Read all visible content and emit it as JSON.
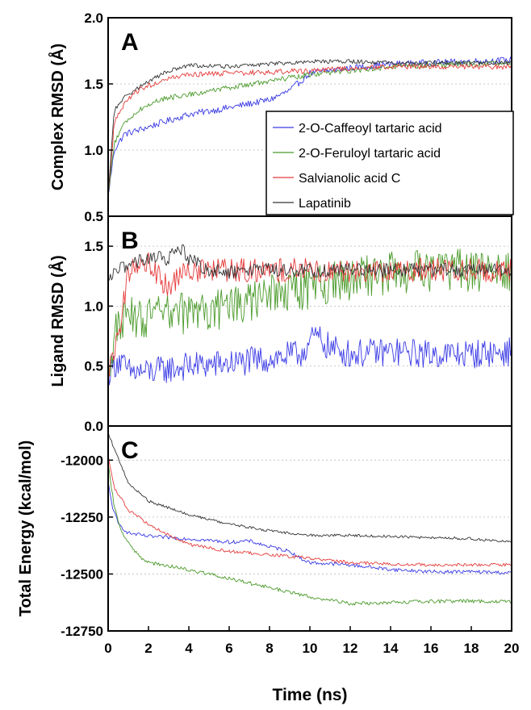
{
  "chart_data": [
    {
      "type": "line",
      "panel_label": "A",
      "ylabel": "Complex RMSD (Å)",
      "xlim": [
        0,
        20
      ],
      "ylim": [
        0.5,
        2.0
      ],
      "yticks": [
        "0.5",
        "1.0",
        "1.5",
        "2.0"
      ],
      "grid": "horizontal dotted",
      "legend_position": "right",
      "legend": [
        "2-O-Caffeoyl tartaric acid",
        "2-O-Feruloyl tartaric acid",
        "Salvianolic acid C",
        "Lapatinib"
      ],
      "series": [
        {
          "name": "2-O-Caffeoyl tartaric acid",
          "color": "#3a3ae6",
          "noise": 0.025,
          "x": [
            0,
            0.3,
            0.8,
            1.5,
            2.5,
            4,
            6,
            8,
            9,
            10,
            11,
            12,
            14,
            16,
            18,
            20
          ],
          "y": [
            0.65,
            1.0,
            1.12,
            1.15,
            1.2,
            1.27,
            1.32,
            1.38,
            1.45,
            1.58,
            1.6,
            1.62,
            1.65,
            1.66,
            1.67,
            1.68
          ]
        },
        {
          "name": "2-O-Feruloyl tartaric acid",
          "color": "#4a9a2a",
          "noise": 0.02,
          "x": [
            0,
            0.3,
            0.8,
            1.5,
            2.5,
            4,
            6,
            8,
            10,
            12,
            14,
            16,
            18,
            20
          ],
          "y": [
            0.65,
            1.05,
            1.2,
            1.3,
            1.38,
            1.42,
            1.47,
            1.52,
            1.57,
            1.6,
            1.63,
            1.64,
            1.65,
            1.66
          ]
        },
        {
          "name": "Salvianolic acid C",
          "color": "#e63a3a",
          "noise": 0.02,
          "x": [
            0,
            0.3,
            0.8,
            1.5,
            2.5,
            4,
            6,
            8,
            10,
            12,
            14,
            16,
            18,
            20
          ],
          "y": [
            0.65,
            1.2,
            1.35,
            1.45,
            1.52,
            1.57,
            1.58,
            1.59,
            1.6,
            1.62,
            1.63,
            1.63,
            1.63,
            1.63
          ]
        },
        {
          "name": "Lapatinib",
          "color": "#333333",
          "noise": 0.015,
          "x": [
            0,
            0.3,
            0.8,
            1.5,
            2,
            3,
            4,
            6,
            8,
            10,
            12,
            14,
            16,
            18,
            20
          ],
          "y": [
            0.65,
            1.3,
            1.4,
            1.47,
            1.52,
            1.6,
            1.64,
            1.63,
            1.65,
            1.67,
            1.67,
            1.66,
            1.66,
            1.66,
            1.66
          ]
        }
      ]
    },
    {
      "type": "line",
      "panel_label": "B",
      "ylabel": "Ligand RMSD (Å)",
      "xlim": [
        0,
        20
      ],
      "ylim": [
        0.0,
        1.75
      ],
      "yticks": [
        "0.0",
        "0.5",
        "1.0",
        "1.5"
      ],
      "grid": "horizontal dotted",
      "series": [
        {
          "name": "2-O-Caffeoyl tartaric acid",
          "color": "#3a3ae6",
          "noise": 0.12,
          "x": [
            0,
            0.5,
            1,
            2,
            4,
            6,
            8,
            9.5,
            10.3,
            11,
            12,
            14,
            16,
            18,
            20
          ],
          "y": [
            0.45,
            0.55,
            0.45,
            0.45,
            0.5,
            0.52,
            0.56,
            0.6,
            0.75,
            0.65,
            0.6,
            0.62,
            0.6,
            0.6,
            0.62
          ]
        },
        {
          "name": "2-O-Feruloyl tartaric acid",
          "color": "#4a9a2a",
          "noise": 0.18,
          "x": [
            0,
            0.5,
            1,
            2,
            4,
            6,
            8,
            10,
            12,
            14,
            16,
            18,
            20
          ],
          "y": [
            0.5,
            0.85,
            0.9,
            0.9,
            0.95,
            0.98,
            1.08,
            1.15,
            1.22,
            1.28,
            1.3,
            1.3,
            1.3
          ]
        },
        {
          "name": "Salvianolic acid C",
          "color": "#e63a3a",
          "noise": 0.1,
          "x": [
            0,
            0.5,
            1,
            2,
            3,
            4,
            5,
            6,
            8,
            10,
            12,
            14,
            16,
            18,
            20
          ],
          "y": [
            0.4,
            0.75,
            1.3,
            1.35,
            1.15,
            1.3,
            1.3,
            1.3,
            1.3,
            1.3,
            1.3,
            1.3,
            1.3,
            1.3,
            1.3
          ]
        },
        {
          "name": "Lapatinib",
          "color": "#333333",
          "noise": 0.06,
          "x": [
            0,
            0.5,
            1,
            2,
            3,
            3.5,
            4,
            5,
            6,
            8,
            10,
            12,
            14,
            16,
            18,
            20
          ],
          "y": [
            1.2,
            1.3,
            1.35,
            1.4,
            1.4,
            1.5,
            1.4,
            1.3,
            1.28,
            1.3,
            1.3,
            1.3,
            1.3,
            1.3,
            1.3,
            1.3
          ]
        }
      ]
    },
    {
      "type": "line",
      "panel_label": "C",
      "ylabel": "Total Energy (kcal/mol)",
      "xlabel": "Time (ns)",
      "xlim": [
        0,
        20
      ],
      "ylim": [
        -12750,
        -11850
      ],
      "yticks": [
        "-12000",
        "-12250",
        "-12500",
        "-12750"
      ],
      "xticks": [
        "0",
        "2",
        "4",
        "6",
        "8",
        "10",
        "12",
        "14",
        "16",
        "18",
        "20"
      ],
      "grid": "horizontal dotted",
      "series": [
        {
          "name": "2-O-Caffeoyl tartaric acid",
          "color": "#3a3ae6",
          "noise": 8,
          "x": [
            0,
            0.2,
            0.5,
            1,
            2,
            4,
            6,
            7,
            8,
            9,
            9.5,
            10,
            12,
            14,
            16,
            18,
            20
          ],
          "y": [
            -12100,
            -12200,
            -12280,
            -12320,
            -12335,
            -12345,
            -12360,
            -12355,
            -12380,
            -12400,
            -12430,
            -12450,
            -12460,
            -12480,
            -12490,
            -12490,
            -12495
          ]
        },
        {
          "name": "2-O-Feruloyl tartaric acid",
          "color": "#4a9a2a",
          "noise": 8,
          "x": [
            0,
            0.3,
            0.6,
            1,
            1.5,
            2,
            4,
            6,
            8,
            10,
            12,
            14,
            16,
            18,
            20
          ],
          "y": [
            -12020,
            -12200,
            -12300,
            -12360,
            -12420,
            -12450,
            -12480,
            -12520,
            -12560,
            -12600,
            -12630,
            -12625,
            -12620,
            -12620,
            -12620
          ]
        },
        {
          "name": "Salvianolic acid C",
          "color": "#e63a3a",
          "noise": 7,
          "x": [
            0,
            0.3,
            1,
            2,
            3,
            4,
            6,
            8,
            10,
            12,
            14,
            16,
            18,
            20
          ],
          "y": [
            -11980,
            -12120,
            -12220,
            -12280,
            -12330,
            -12370,
            -12400,
            -12415,
            -12430,
            -12450,
            -12455,
            -12460,
            -12460,
            -12460
          ]
        },
        {
          "name": "Lapatinib",
          "color": "#333333",
          "noise": 6,
          "x": [
            0,
            0.3,
            1,
            2,
            3,
            4,
            6,
            8,
            10,
            12,
            14,
            16,
            18,
            20
          ],
          "y": [
            -11880,
            -11950,
            -12100,
            -12180,
            -12210,
            -12240,
            -12280,
            -12310,
            -12330,
            -12330,
            -12335,
            -12340,
            -12345,
            -12360
          ]
        }
      ]
    }
  ]
}
